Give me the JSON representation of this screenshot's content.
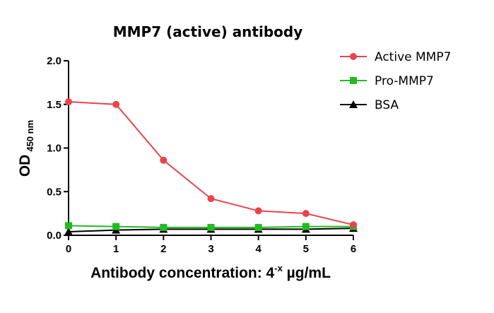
{
  "chart_data": {
    "type": "line",
    "title": "MMP7 (active) antibody",
    "xlabel": {
      "main": "Antibody concentration: 4",
      "superscript": "-x",
      "unit": " µg/mL"
    },
    "ylabel": {
      "main": "OD",
      "subscript": "450 nm"
    },
    "x": [
      0,
      1,
      2,
      3,
      4,
      5,
      6
    ],
    "xlim": [
      0,
      6
    ],
    "ylim": [
      0,
      2.0
    ],
    "x_ticks": [
      "0",
      "1",
      "2",
      "3",
      "4",
      "5",
      "6"
    ],
    "y_ticks": [
      "0.0",
      "0.5",
      "1.0",
      "1.5",
      "2.0"
    ],
    "grid": false,
    "legend_position": "top-right",
    "series": [
      {
        "name": "Active MMP7",
        "color": "#e8444c",
        "marker": "circle",
        "values": [
          1.53,
          1.5,
          0.86,
          0.42,
          0.28,
          0.25,
          0.12
        ]
      },
      {
        "name": "Pro-MMP7",
        "color": "#22bb22",
        "marker": "square",
        "values": [
          0.11,
          0.1,
          0.09,
          0.09,
          0.09,
          0.1,
          0.1
        ]
      },
      {
        "name": "BSA",
        "color": "#000000",
        "marker": "triangle",
        "values": [
          0.04,
          0.06,
          0.07,
          0.07,
          0.07,
          0.07,
          0.08
        ]
      }
    ]
  }
}
